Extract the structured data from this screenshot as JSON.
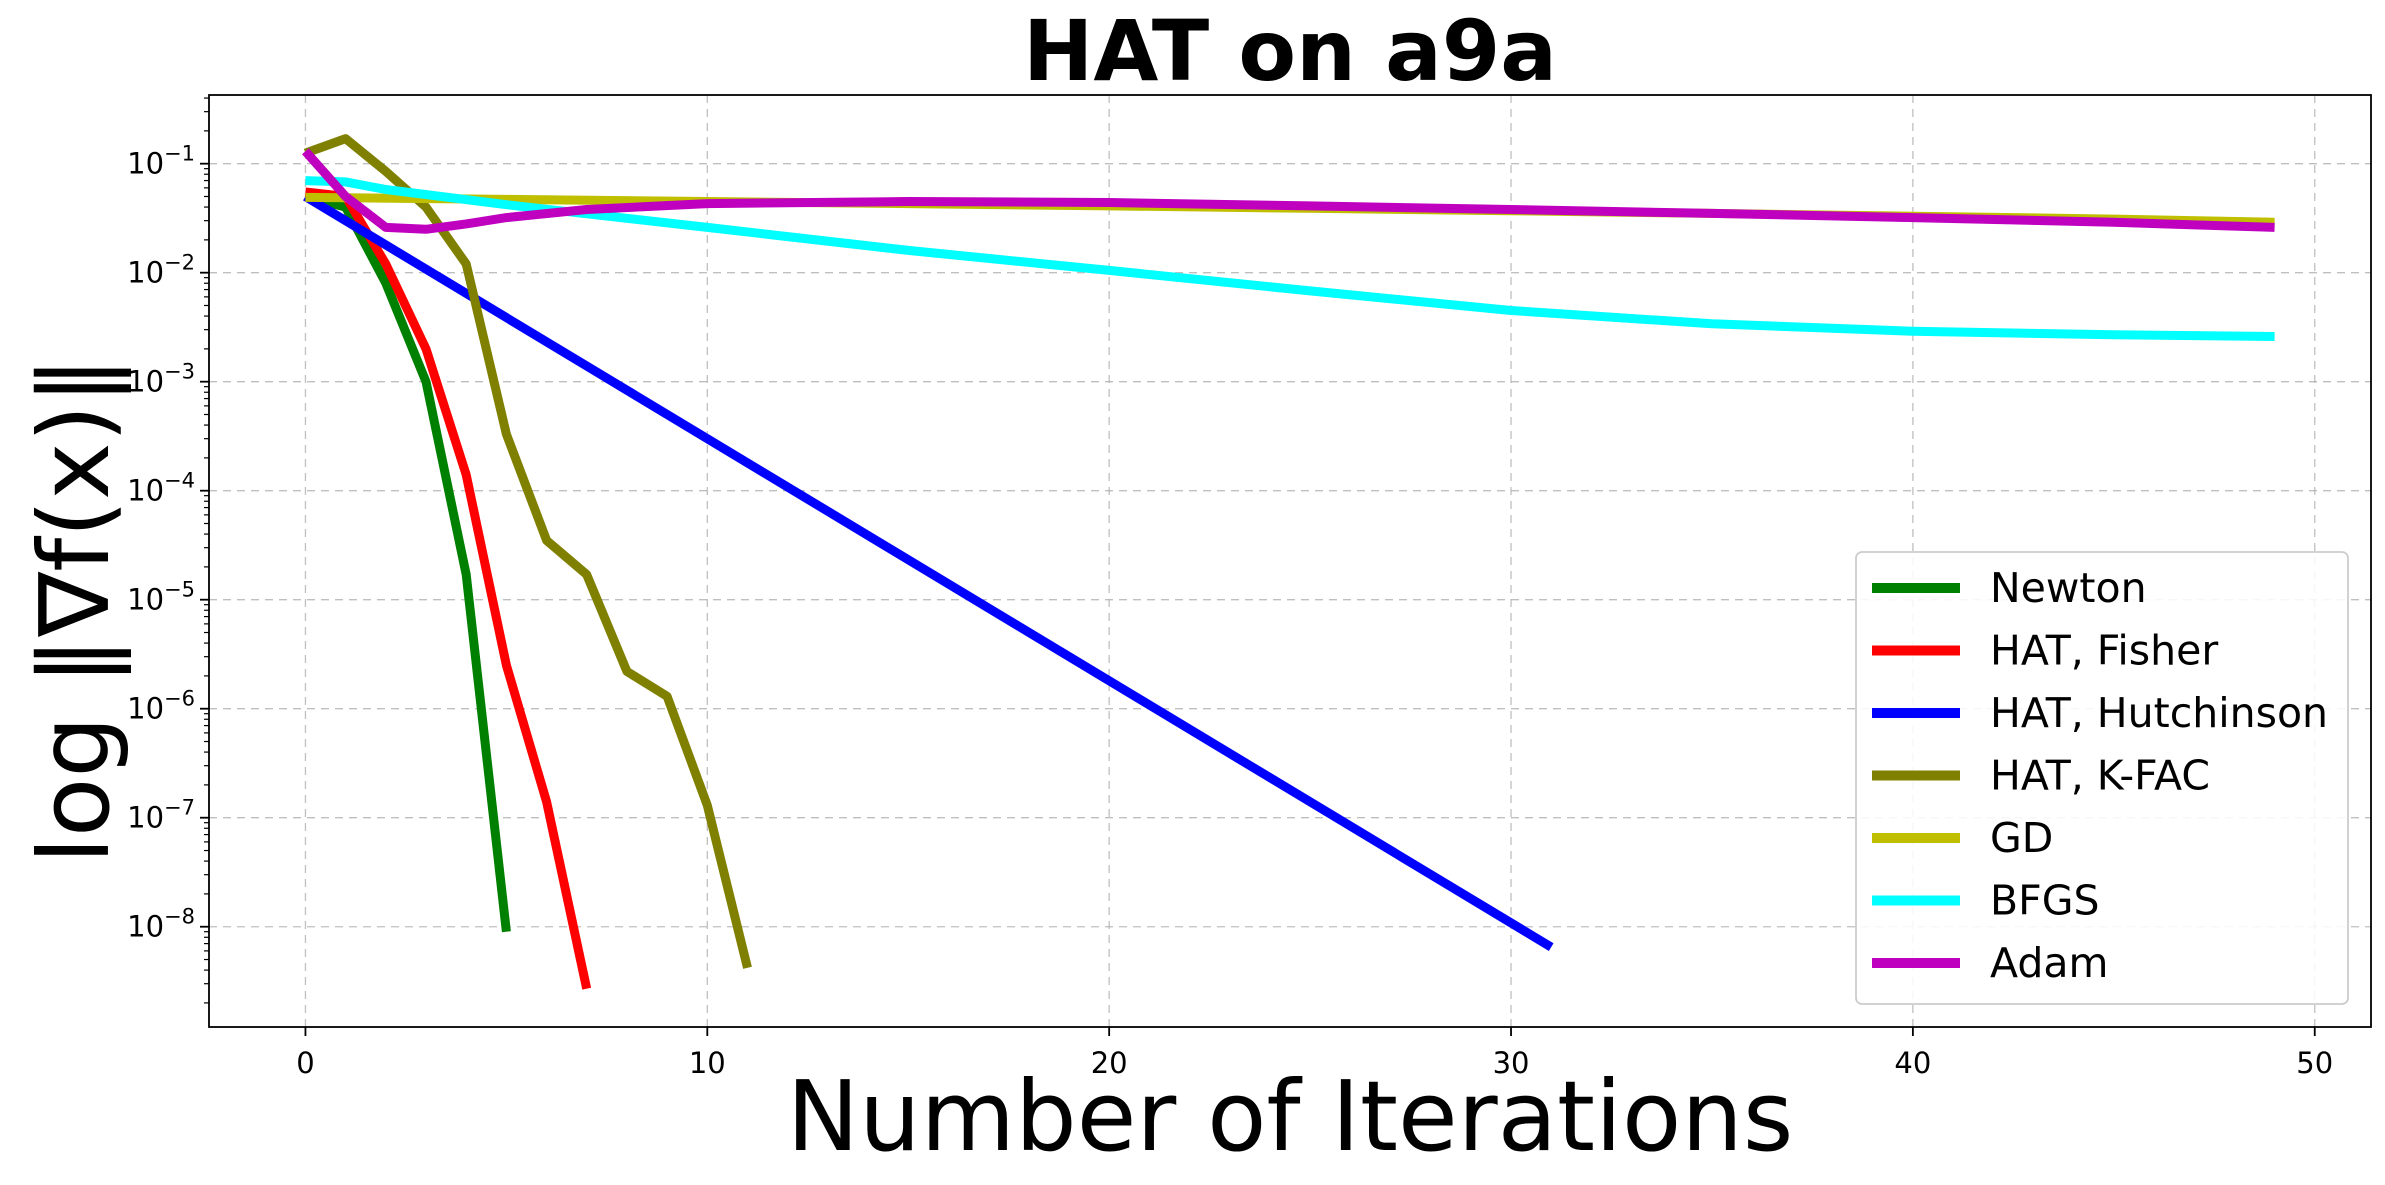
{
  "chart_data": {
    "type": "line",
    "title": "HAT on a9a",
    "xlabel": "Number of Iterations",
    "ylabel": "log ‖∇f(x)‖",
    "xlim": [
      -2.4,
      51.4
    ],
    "ylim_log10": [
      -8.92,
      -0.37
    ],
    "yscale": "log",
    "grid": true,
    "legend_position": "lower-right",
    "x_ticks": [
      0,
      10,
      20,
      30,
      40,
      50
    ],
    "y_ticks": [
      {
        "base": "10",
        "exp": "−1",
        "log": -1
      },
      {
        "base": "10",
        "exp": "−2",
        "log": -2
      },
      {
        "base": "10",
        "exp": "−3",
        "log": -3
      },
      {
        "base": "10",
        "exp": "−4",
        "log": -4
      },
      {
        "base": "10",
        "exp": "−5",
        "log": -5
      },
      {
        "base": "10",
        "exp": "−6",
        "log": -6
      },
      {
        "base": "10",
        "exp": "−7",
        "log": -7
      },
      {
        "base": "10",
        "exp": "−8",
        "log": -8
      }
    ],
    "series": [
      {
        "name": "Newton",
        "color": "#008000",
        "x": [
          0,
          1,
          2,
          3,
          4,
          5
        ],
        "y": [
          0.05,
          0.04,
          0.008,
          0.001,
          1.7e-05,
          9e-09
        ]
      },
      {
        "name": "HAT, Fisher",
        "color": "#ff0000",
        "x": [
          0,
          1,
          2,
          3,
          4,
          5,
          6,
          7
        ],
        "y": [
          0.055,
          0.05,
          0.012,
          0.002,
          0.00014,
          2.5e-06,
          1.4e-07,
          2.7e-09
        ]
      },
      {
        "name": "HAT, Hutchinson",
        "color": "#0000ff",
        "x": [
          0,
          31
        ],
        "y": [
          0.05,
          6.5e-09
        ]
      },
      {
        "name": "HAT, K-FAC",
        "color": "#808000",
        "x": [
          0,
          1,
          2,
          3,
          4,
          5,
          6,
          7,
          8,
          9,
          10,
          11
        ],
        "y": [
          0.125,
          0.17,
          0.085,
          0.04,
          0.012,
          0.00033,
          3.5e-05,
          1.7e-05,
          2.2e-06,
          1.3e-06,
          1.3e-07,
          4.2e-09
        ]
      },
      {
        "name": "GD",
        "color": "#bfbf00",
        "x": [
          0,
          5,
          10,
          15,
          20,
          25,
          30,
          35,
          40,
          45,
          49
        ],
        "y": [
          0.049,
          0.047,
          0.045,
          0.043,
          0.041,
          0.039,
          0.037,
          0.035,
          0.033,
          0.031,
          0.029
        ]
      },
      {
        "name": "BFGS",
        "color": "#00ffff",
        "x": [
          0,
          1,
          2,
          5,
          10,
          15,
          20,
          25,
          30,
          35,
          40,
          45,
          49
        ],
        "y": [
          0.07,
          0.068,
          0.058,
          0.042,
          0.026,
          0.016,
          0.0105,
          0.0068,
          0.0045,
          0.0034,
          0.0029,
          0.0027,
          0.0026
        ]
      },
      {
        "name": "Adam",
        "color": "#bf00bf",
        "x": [
          0,
          1,
          2,
          3,
          4,
          5,
          7,
          10,
          15,
          20,
          25,
          30,
          35,
          40,
          45,
          49
        ],
        "y": [
          0.13,
          0.05,
          0.026,
          0.025,
          0.028,
          0.032,
          0.038,
          0.043,
          0.045,
          0.044,
          0.041,
          0.038,
          0.035,
          0.032,
          0.029,
          0.026
        ]
      }
    ]
  }
}
